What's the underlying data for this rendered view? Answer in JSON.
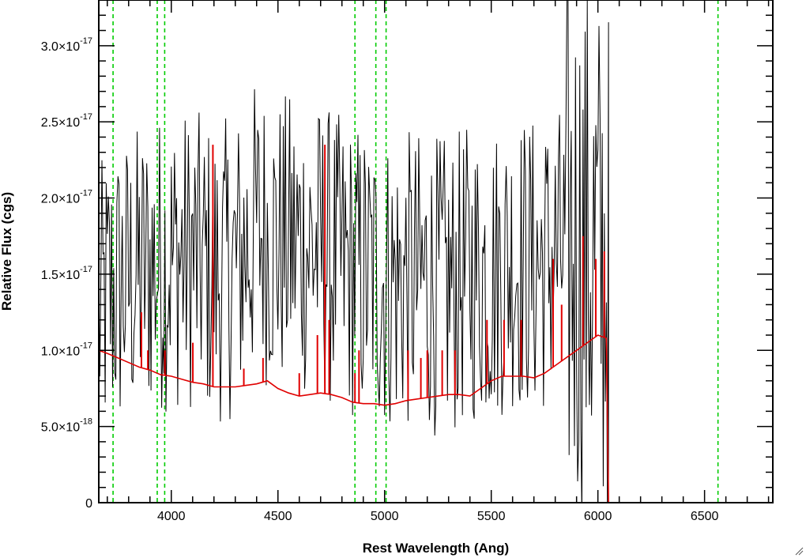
{
  "chart_data": {
    "type": "line",
    "title": "",
    "xlabel": "Rest Wavelength (Ang)",
    "ylabel": "Relative Flux (cgs)",
    "xlim": [
      3660,
      6820
    ],
    "ylim": [
      0,
      3.3e-17
    ],
    "x_ticks": [
      {
        "value": 4000,
        "label": "4000"
      },
      {
        "value": 4500,
        "label": "4500"
      },
      {
        "value": 5000,
        "label": "5000"
      },
      {
        "value": 5500,
        "label": "5500"
      },
      {
        "value": 6000,
        "label": "6000"
      },
      {
        "value": 6500,
        "label": "6500"
      }
    ],
    "y_ticks": [
      {
        "value": 0,
        "mantissa": "0",
        "exponent": ""
      },
      {
        "value": 5e-18,
        "mantissa": "5.0×10",
        "exponent": "-18"
      },
      {
        "value": 1e-17,
        "mantissa": "1.0×10",
        "exponent": "-17"
      },
      {
        "value": 1.5e-17,
        "mantissa": "1.5×10",
        "exponent": "-17"
      },
      {
        "value": 2e-17,
        "mantissa": "2.0×10",
        "exponent": "-17"
      },
      {
        "value": 2.5e-17,
        "mantissa": "2.5×10",
        "exponent": "-17"
      },
      {
        "value": 3e-17,
        "mantissa": "3.0×10",
        "exponent": "-17"
      }
    ],
    "x_minor_step": 100,
    "y_minor_step": 1e-18,
    "grid": false,
    "legend": "none",
    "colors": {
      "spectrum": "#000000",
      "model": "#e00000",
      "lines": "#00cc00"
    },
    "spectrum_noise": {
      "x_start": 3660,
      "x_end": 6050,
      "wavelength_step": 5,
      "amplitude": 1e-17
    },
    "series": [
      {
        "color": "#000000",
        "role": "observed-spectrum",
        "x": [
          3660,
          3700,
          3800,
          3900,
          4000,
          4100,
          4200,
          4300,
          4400,
          4500,
          4600,
          4700,
          4800,
          4900,
          5000,
          5100,
          5200,
          5300,
          5400,
          5500,
          5600,
          5700,
          5800,
          5900,
          6000,
          6050
        ],
        "y": [
          1.2e-17,
          1.35e-17,
          1.45e-17,
          1.55e-17,
          1.6e-17,
          1.6e-17,
          1.5e-17,
          1.55e-17,
          1.8e-17,
          1.7e-17,
          1.7e-17,
          1.65e-17,
          1.55e-17,
          1.5e-17,
          1.45e-17,
          1.45e-17,
          1.45e-17,
          1.4e-17,
          1.5e-17,
          1.5e-17,
          1.6e-17,
          1.55e-17,
          1.6e-17,
          1.7e-17,
          1.6e-17,
          1.5e-17
        ]
      },
      {
        "color": "#e00000",
        "role": "model-continuum",
        "x": [
          3660,
          3700,
          3750,
          3800,
          3850,
          3900,
          3950,
          4000,
          4050,
          4100,
          4150,
          4200,
          4250,
          4300,
          4350,
          4400,
          4450,
          4500,
          4550,
          4600,
          4650,
          4700,
          4750,
          4800,
          4850,
          4900,
          4950,
          5000,
          5050,
          5100,
          5150,
          5200,
          5250,
          5300,
          5350,
          5400,
          5450,
          5500,
          5550,
          5600,
          5650,
          5700,
          5750,
          5800,
          5850,
          5900,
          5950,
          6000,
          6040,
          6045,
          6050,
          6820
        ],
        "y": [
          1e-17,
          9.8e-18,
          9.5e-18,
          9.2e-18,
          8.9e-18,
          8.7e-18,
          8.4e-18,
          8.3e-18,
          8.1e-18,
          7.9e-18,
          7.8e-18,
          7.6e-18,
          7.6e-18,
          7.6e-18,
          7.7e-18,
          7.8e-18,
          8e-18,
          7.5e-18,
          7.2e-18,
          7e-18,
          7.1e-18,
          7.2e-18,
          7.1e-18,
          6.9e-18,
          6.6e-18,
          6.5e-18,
          6.5e-18,
          6.4e-18,
          6.5e-18,
          6.7e-18,
          6.8e-18,
          6.9e-18,
          7e-18,
          7.1e-18,
          7.1e-18,
          7e-18,
          7.5e-18,
          8e-18,
          8.3e-18,
          8.3e-18,
          8.3e-18,
          8.2e-18,
          8.5e-18,
          9e-18,
          9.5e-18,
          1e-17,
          1.05e-17,
          1.1e-17,
          1.08e-17,
          5e-18,
          0,
          0
        ]
      }
    ],
    "model_spikes": [
      {
        "x": 3860,
        "y": 1.25e-17
      },
      {
        "x": 3890,
        "y": 1e-17
      },
      {
        "x": 3970,
        "y": 1e-17
      },
      {
        "x": 4101,
        "y": 1.05e-17
      },
      {
        "x": 4195,
        "y": 2.35e-17
      },
      {
        "x": 4340,
        "y": 8.8e-18
      },
      {
        "x": 4430,
        "y": 9.5e-18
      },
      {
        "x": 4600,
        "y": 8.5e-18
      },
      {
        "x": 4685,
        "y": 1.1e-17
      },
      {
        "x": 4720,
        "y": 2.35e-17
      },
      {
        "x": 4740,
        "y": 1.2e-17
      },
      {
        "x": 4861,
        "y": 8.5e-18
      },
      {
        "x": 4880,
        "y": 1e-17
      },
      {
        "x": 5110,
        "y": 1e-17
      },
      {
        "x": 5170,
        "y": 9.5e-18
      },
      {
        "x": 5200,
        "y": 1e-17
      },
      {
        "x": 5270,
        "y": 1e-17
      },
      {
        "x": 5330,
        "y": 1e-17
      },
      {
        "x": 5480,
        "y": 1.2e-17
      },
      {
        "x": 5560,
        "y": 1.2e-17
      },
      {
        "x": 5640,
        "y": 1.2e-17
      },
      {
        "x": 5790,
        "y": 1.6e-17
      },
      {
        "x": 5830,
        "y": 1.3e-17
      },
      {
        "x": 5930,
        "y": 1.75e-17
      },
      {
        "x": 5990,
        "y": 1.6e-17
      },
      {
        "x": 6030,
        "y": 1.65e-17
      }
    ],
    "reference_lines": [
      3727,
      3934,
      3969,
      4861,
      4959,
      5007,
      6563
    ]
  }
}
